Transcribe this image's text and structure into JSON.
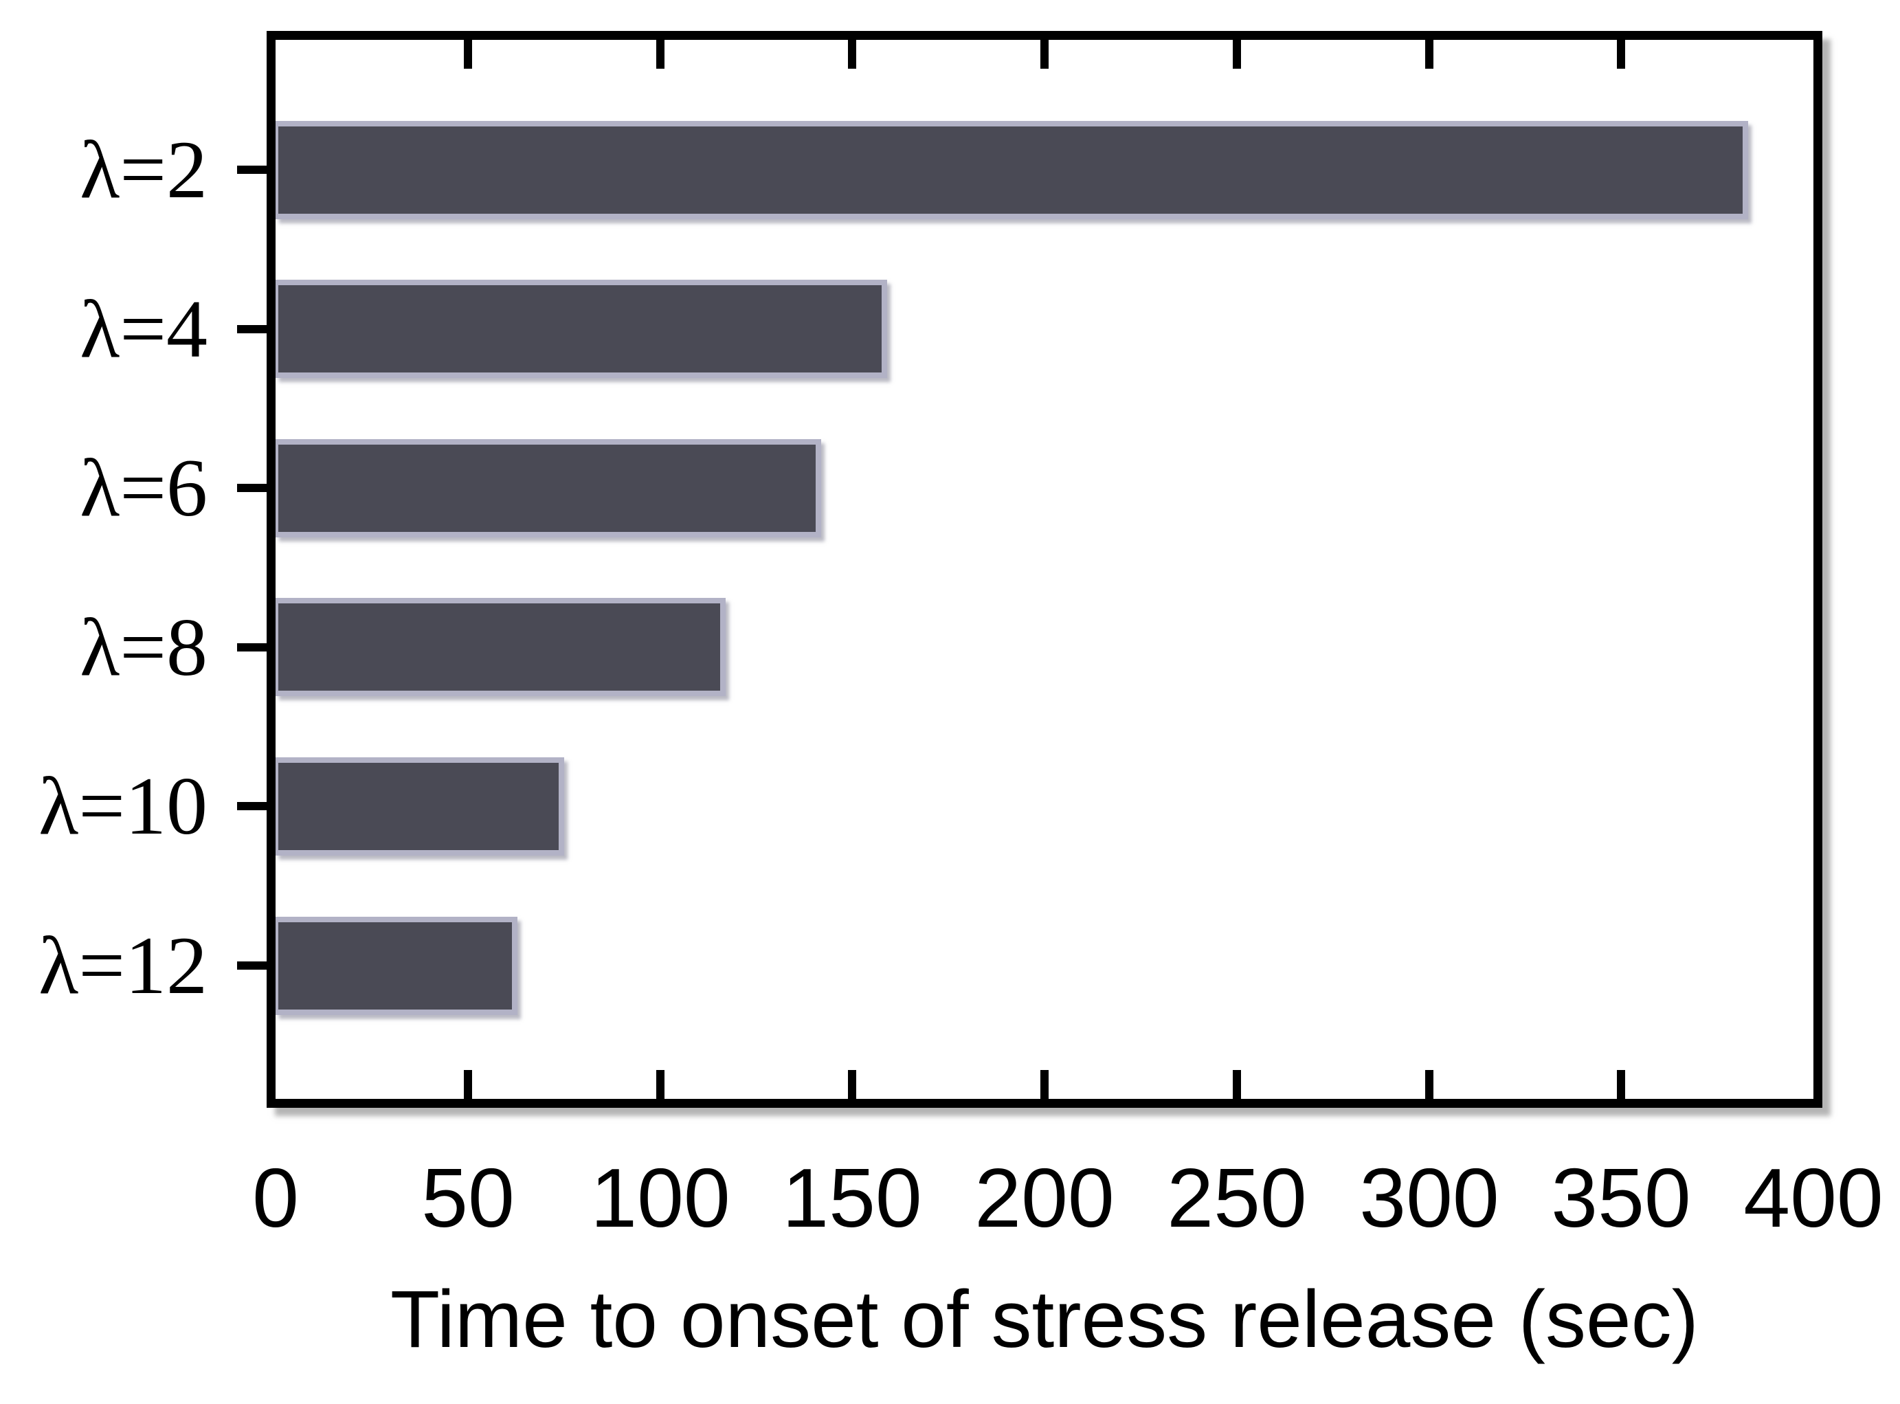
{
  "figure": {
    "background_color": "#ffffff",
    "axis_color": "#000000"
  },
  "chart_data": {
    "type": "bar",
    "orientation": "horizontal",
    "title": "",
    "xlabel": "Time to onset of stress release (sec)",
    "ylabel": "",
    "categories": [
      "λ=2",
      "λ=4",
      "λ=6",
      "λ=8",
      "λ=10",
      "λ=12"
    ],
    "values": [
      383,
      159,
      142,
      117,
      75,
      63
    ],
    "xlim": [
      0,
      400
    ],
    "xticks": [
      0,
      50,
      100,
      150,
      200,
      250,
      300,
      350,
      400
    ],
    "grid": false,
    "legend": false,
    "bar_color": "#4a4a55",
    "bar_border_color": "#b2b2c6"
  }
}
